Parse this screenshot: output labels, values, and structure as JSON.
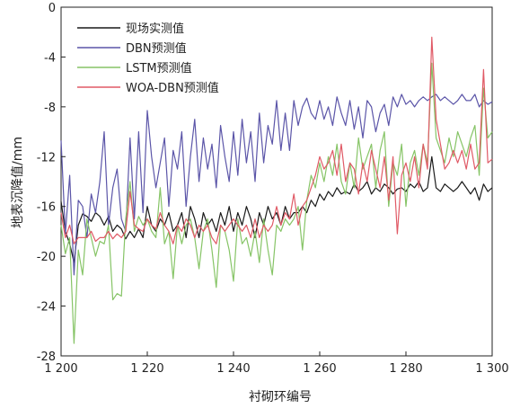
{
  "chart_data": {
    "type": "line",
    "title": "",
    "xlabel": "衬砌环编号",
    "ylabel": "地表沉降值/mm",
    "xlim": [
      1200,
      1300
    ],
    "ylim": [
      -28,
      0
    ],
    "x_tick_labels": [
      "1 200",
      "1 220",
      "1 240",
      "1 260",
      "1 280",
      "1 300"
    ],
    "x_tick_values": [
      1200,
      1220,
      1240,
      1260,
      1280,
      1300
    ],
    "y_tick_labels": [
      "-28",
      "-24",
      "-20",
      "-16",
      "-12",
      "-8",
      "-4",
      "0"
    ],
    "y_tick_values": [
      -28,
      -24,
      -20,
      -16,
      -12,
      -8,
      -4,
      0
    ],
    "grid": false,
    "legend_position": "top-left",
    "x_start": 1200,
    "x_step": 1,
    "series": [
      {
        "name": "现场实测值",
        "color": "#1a1a1a",
        "values": [
          -15.6,
          -18.0,
          -19.0,
          -20.5,
          -17.5,
          -16.6,
          -16.8,
          -17.2,
          -16.5,
          -16.8,
          -17.5,
          -16.8,
          -18.0,
          -17.5,
          -17.8,
          -18.6,
          -18.0,
          -18.5,
          -17.8,
          -18.5,
          -16.0,
          -17.5,
          -18.0,
          -17.0,
          -17.5,
          -16.5,
          -18.0,
          -17.5,
          -16.5,
          -18.5,
          -16.0,
          -17.0,
          -18.5,
          -16.5,
          -17.5,
          -17.0,
          -18.0,
          -16.5,
          -17.5,
          -16.0,
          -18.0,
          -16.5,
          -17.5,
          -16.0,
          -17.0,
          -18.5,
          -16.5,
          -17.5,
          -16.0,
          -17.0,
          -16.5,
          -17.5,
          -16.0,
          -17.0,
          -16.5,
          -16.5,
          -16.0,
          -16.5,
          -15.5,
          -16.0,
          -15.0,
          -15.5,
          -14.8,
          -15.2,
          -14.5,
          -15.0,
          -14.8,
          -15.0,
          -14.2,
          -14.8,
          -14.5,
          -14.0,
          -15.0,
          -14.5,
          -14.8,
          -14.2,
          -14.5,
          -15.0,
          -14.6,
          -14.5,
          -14.8,
          -14.2,
          -14.5,
          -14.0,
          -14.8,
          -14.5,
          -12.0,
          -14.5,
          -14.8,
          -14.2,
          -14.5,
          -14.8,
          -14.5,
          -14.0,
          -14.5,
          -15.0,
          -14.5,
          -15.5,
          -14.2,
          -14.8,
          -14.5
        ]
      },
      {
        "name": "DBN预测值",
        "color": "#5b55a8",
        "values": [
          -10.7,
          -18.2,
          -13.5,
          -21.5,
          -15.5,
          -16.0,
          -18.5,
          -15.0,
          -16.5,
          -14.0,
          -10.0,
          -17.5,
          -14.5,
          -13.0,
          -17.0,
          -18.0,
          -10.5,
          -17.0,
          -10.0,
          -16.5,
          -8.3,
          -12.0,
          -14.5,
          -12.5,
          -10.5,
          -16.0,
          -11.5,
          -13.0,
          -10.0,
          -16.0,
          -12.0,
          -9.0,
          -14.0,
          -10.5,
          -13.0,
          -11.0,
          -14.5,
          -9.5,
          -12.0,
          -14.0,
          -10.0,
          -13.5,
          -9.0,
          -12.5,
          -10.0,
          -14.0,
          -8.5,
          -12.5,
          -9.5,
          -11.0,
          -7.5,
          -11.5,
          -8.5,
          -11.5,
          -7.5,
          -9.5,
          -8.0,
          -7.3,
          -8.5,
          -9.0,
          -7.5,
          -9.0,
          -8.0,
          -9.5,
          -7.2,
          -8.5,
          -9.5,
          -7.5,
          -9.8,
          -8.0,
          -10.5,
          -7.5,
          -8.0,
          -10.0,
          -8.5,
          -7.8,
          -9.5,
          -7.2,
          -8.0,
          -7.0,
          -7.8,
          -7.5,
          -8.0,
          -7.5,
          -7.2,
          -7.5,
          -7.2,
          -7.0,
          -7.5,
          -7.2,
          -7.5,
          -7.8,
          -7.5,
          -7.0,
          -7.5,
          -7.5,
          -7.0,
          -8.0,
          -7.5,
          -7.8,
          -7.6
        ]
      },
      {
        "name": "LSTM预测值",
        "color": "#86c466",
        "values": [
          -17.5,
          -19.8,
          -18.5,
          -27.0,
          -19.5,
          -21.5,
          -17.0,
          -18.5,
          -20.0,
          -18.8,
          -19.0,
          -17.5,
          -23.5,
          -23.0,
          -23.2,
          -17.0,
          -14.0,
          -18.0,
          -16.8,
          -17.5,
          -17.0,
          -18.0,
          -18.5,
          -14.5,
          -19.0,
          -18.0,
          -21.8,
          -17.5,
          -19.0,
          -17.5,
          -17.0,
          -18.5,
          -21.0,
          -18.0,
          -17.0,
          -19.5,
          -22.5,
          -17.5,
          -18.0,
          -19.5,
          -22.0,
          -17.0,
          -19.0,
          -18.5,
          -20.0,
          -18.0,
          -20.5,
          -17.0,
          -19.5,
          -21.5,
          -17.5,
          -18.0,
          -17.0,
          -17.5,
          -17.0,
          -16.0,
          -19.5,
          -15.5,
          -13.5,
          -14.5,
          -12.5,
          -14.0,
          -12.0,
          -13.5,
          -11.0,
          -14.0,
          -15.0,
          -12.5,
          -14.5,
          -10.5,
          -13.0,
          -12.0,
          -11.0,
          -14.5,
          -11.5,
          -10.0,
          -16.0,
          -12.5,
          -13.5,
          -11.0,
          -16.0,
          -12.5,
          -11.5,
          -13.5,
          -11.0,
          -12.5,
          -4.5,
          -10.5,
          -11.5,
          -12.5,
          -10.5,
          -12.0,
          -10.0,
          -11.0,
          -12.0,
          -10.5,
          -9.5,
          -13.5,
          -6.5,
          -10.5,
          -10.0
        ]
      },
      {
        "name": "WOA-DBN预测值",
        "color": "#e05a66",
        "values": [
          -16.5,
          -18.5,
          -17.5,
          -19.0,
          -18.5,
          -18.5,
          -18.5,
          -18.0,
          -18.8,
          -18.5,
          -18.5,
          -18.0,
          -18.6,
          -18.2,
          -18.5,
          -18.0,
          -14.8,
          -17.5,
          -17.8,
          -18.0,
          -17.0,
          -17.5,
          -17.8,
          -16.5,
          -17.5,
          -18.0,
          -19.0,
          -17.5,
          -18.0,
          -17.0,
          -17.5,
          -18.5,
          -17.5,
          -18.0,
          -17.5,
          -18.5,
          -19.0,
          -17.5,
          -18.0,
          -17.5,
          -17.0,
          -17.5,
          -18.0,
          -17.5,
          -18.5,
          -17.0,
          -18.5,
          -17.5,
          -18.0,
          -17.5,
          -16.0,
          -17.5,
          -16.5,
          -17.0,
          -15.0,
          -17.5,
          -16.0,
          -15.5,
          -14.5,
          -13.5,
          -12.0,
          -13.0,
          -12.5,
          -11.5,
          -13.5,
          -11.0,
          -14.0,
          -12.5,
          -13.0,
          -15.0,
          -12.5,
          -14.0,
          -11.5,
          -13.0,
          -14.5,
          -12.0,
          -15.5,
          -12.0,
          -18.2,
          -13.5,
          -12.5,
          -14.0,
          -12.0,
          -14.5,
          -11.0,
          -13.0,
          -2.4,
          -9.0,
          -11.0,
          -13.0,
          -12.5,
          -11.5,
          -12.5,
          -11.5,
          -13.0,
          -11.0,
          -13.0,
          -12.5,
          -5.0,
          -12.5,
          -12.2
        ]
      }
    ]
  }
}
